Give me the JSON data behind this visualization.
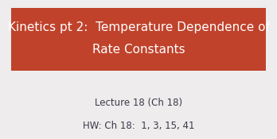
{
  "bg_color": "#eeecec",
  "banner_color": "#c0422b",
  "banner_text_line1": "Kinetics pt 2:  Temperature Dependence of",
  "banner_text_line2": "Rate Constants",
  "banner_text_color": "#ffffff",
  "banner_fontsize": 11.0,
  "line1": "Lecture 18 (Ch 18)",
  "line2": "HW: Ch 18:  1, 3, 15, 41",
  "body_text_color": "#3a3a4a",
  "body_fontsize": 8.5
}
